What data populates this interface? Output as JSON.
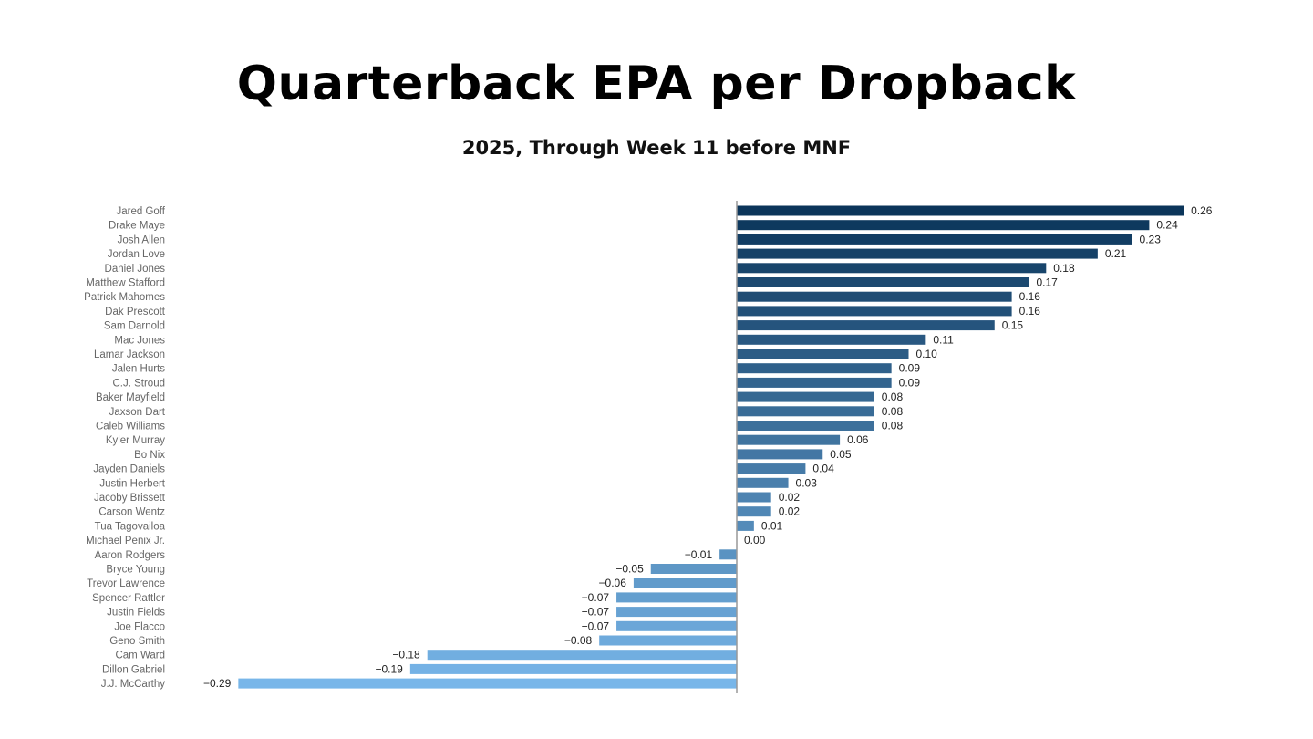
{
  "chart_data": {
    "type": "bar",
    "orientation": "horizontal",
    "title": "Quarterback EPA per Dropback",
    "subtitle": "2025, Through Week 11 before MNF",
    "xlabel": "",
    "ylabel": "",
    "grid": false,
    "colors": {
      "high": "#0b355a",
      "low": "#78b6e9"
    },
    "categories": [
      "Jared Goff",
      "Drake Maye",
      "Josh Allen",
      "Jordan Love",
      "Daniel Jones",
      "Matthew Stafford",
      "Patrick Mahomes",
      "Dak Prescott",
      "Sam Darnold",
      "Mac Jones",
      "Lamar Jackson",
      "Jalen Hurts",
      "C.J. Stroud",
      "Baker Mayfield",
      "Jaxson Dart",
      "Caleb Williams",
      "Kyler Murray",
      "Bo Nix",
      "Jayden Daniels",
      "Justin Herbert",
      "Jacoby Brissett",
      "Carson Wentz",
      "Tua Tagovailoa",
      "Michael Penix Jr.",
      "Aaron Rodgers",
      "Bryce Young",
      "Trevor Lawrence",
      "Spencer Rattler",
      "Justin Fields",
      "Joe Flacco",
      "Geno Smith",
      "Cam Ward",
      "Dillon Gabriel",
      "J.J. McCarthy"
    ],
    "values": [
      0.26,
      0.24,
      0.23,
      0.21,
      0.18,
      0.17,
      0.16,
      0.16,
      0.15,
      0.11,
      0.1,
      0.09,
      0.09,
      0.08,
      0.08,
      0.08,
      0.06,
      0.05,
      0.04,
      0.03,
      0.02,
      0.02,
      0.01,
      0.0,
      -0.01,
      -0.05,
      -0.06,
      -0.07,
      -0.07,
      -0.07,
      -0.08,
      -0.18,
      -0.19,
      -0.29
    ],
    "value_labels": [
      "0.26",
      "0.24",
      "0.23",
      "0.21",
      "0.18",
      "0.17",
      "0.16",
      "0.16",
      "0.15",
      "0.11",
      "0.10",
      "0.09",
      "0.09",
      "0.08",
      "0.08",
      "0.08",
      "0.06",
      "0.05",
      "0.04",
      "0.03",
      "0.02",
      "0.02",
      "0.01",
      "0.00",
      "−0.01",
      "−0.05",
      "−0.06",
      "−0.07",
      "−0.07",
      "−0.07",
      "−0.08",
      "−0.18",
      "−0.19",
      "−0.29"
    ],
    "xlim": [
      -0.29,
      0.26
    ]
  }
}
